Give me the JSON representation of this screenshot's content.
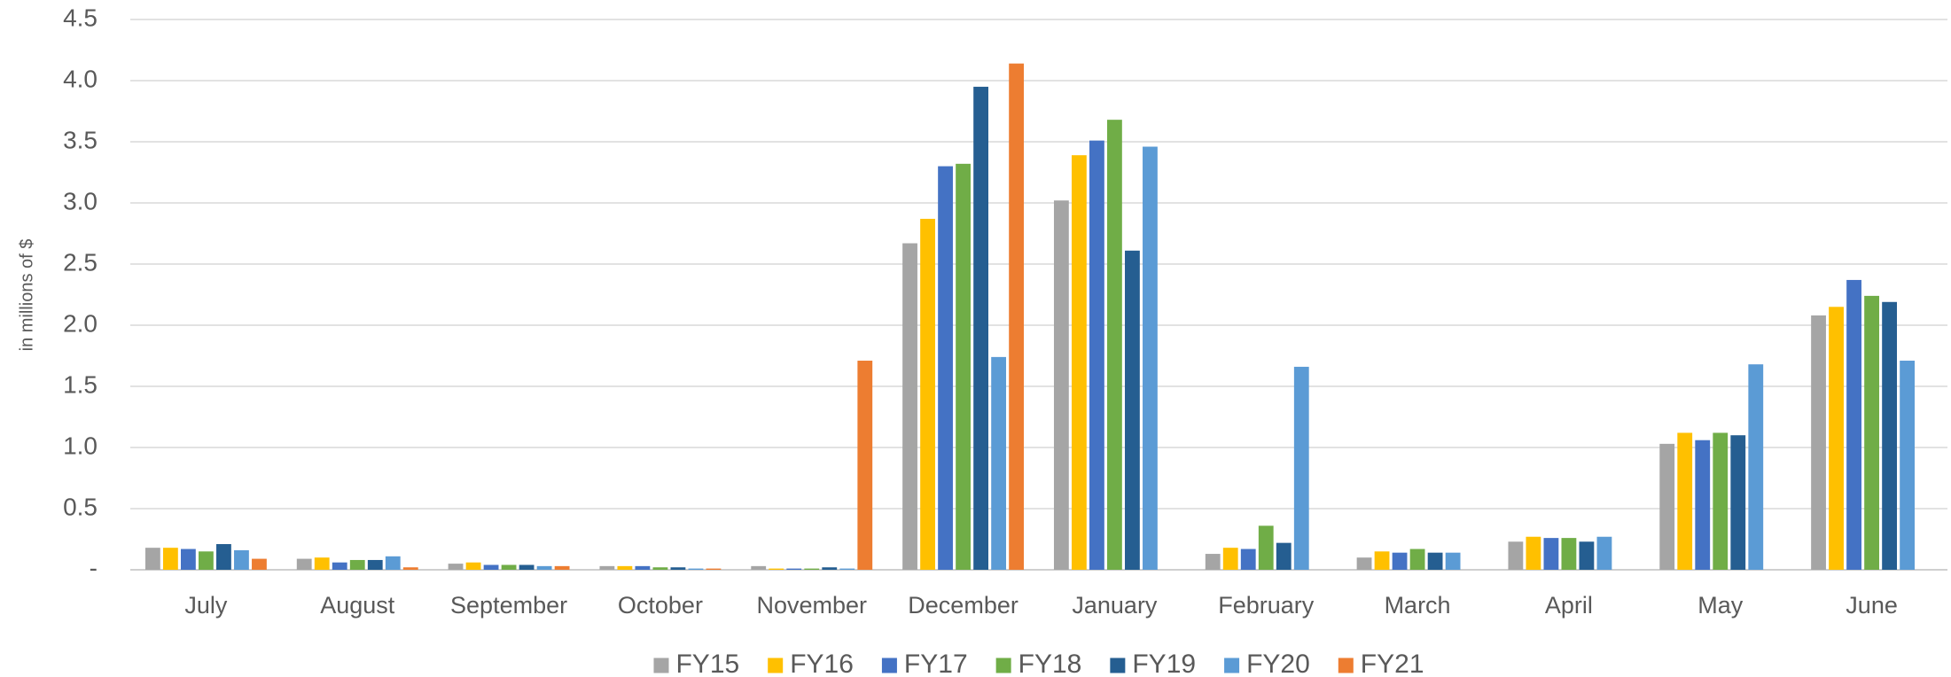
{
  "chart_data": {
    "type": "bar",
    "y_label": "in millions of $",
    "categories": [
      "July",
      "August",
      "September",
      "October",
      "November",
      "December",
      "January",
      "February",
      "March",
      "April",
      "May",
      "June"
    ],
    "series": [
      {
        "name": "FY15",
        "color": "#a5a5a5",
        "values": [
          0.18,
          0.09,
          0.05,
          0.03,
          0.03,
          2.67,
          3.02,
          0.13,
          0.1,
          0.23,
          1.03,
          2.08
        ]
      },
      {
        "name": "FY16",
        "color": "#ffc000",
        "values": [
          0.18,
          0.1,
          0.06,
          0.03,
          0.01,
          2.87,
          3.39,
          0.18,
          0.15,
          0.27,
          1.12,
          2.15
        ]
      },
      {
        "name": "FY17",
        "color": "#4472c4",
        "values": [
          0.17,
          0.06,
          0.04,
          0.03,
          0.01,
          3.3,
          3.51,
          0.17,
          0.14,
          0.26,
          1.06,
          2.37
        ]
      },
      {
        "name": "FY18",
        "color": "#70ad47",
        "values": [
          0.15,
          0.08,
          0.04,
          0.02,
          0.01,
          3.32,
          3.68,
          0.36,
          0.17,
          0.26,
          1.12,
          2.24
        ]
      },
      {
        "name": "FY19",
        "color": "#255e91",
        "values": [
          0.21,
          0.08,
          0.04,
          0.02,
          0.02,
          3.95,
          2.61,
          0.22,
          0.14,
          0.23,
          1.1,
          2.19
        ]
      },
      {
        "name": "FY20",
        "color": "#5b9bd5",
        "values": [
          0.16,
          0.11,
          0.03,
          0.01,
          0.01,
          1.74,
          3.46,
          1.66,
          0.14,
          0.27,
          1.68,
          1.71
        ]
      },
      {
        "name": "FY21",
        "color": "#ed7d31",
        "values": [
          0.09,
          0.02,
          0.03,
          0.01,
          1.71,
          4.14,
          null,
          null,
          null,
          null,
          null,
          null
        ]
      }
    ],
    "ylim": [
      0,
      4.5
    ],
    "yticks": [
      {
        "value": 0,
        "label": "-"
      },
      0.5,
      {
        "value": 1,
        "label": "1.0"
      },
      1.5,
      {
        "value": 2,
        "label": "2.0"
      },
      2.5,
      {
        "value": 3,
        "label": "3.0"
      },
      3.5,
      {
        "value": 4,
        "label": "4.0"
      },
      4.5
    ],
    "grid": true,
    "legend": "bottom"
  }
}
